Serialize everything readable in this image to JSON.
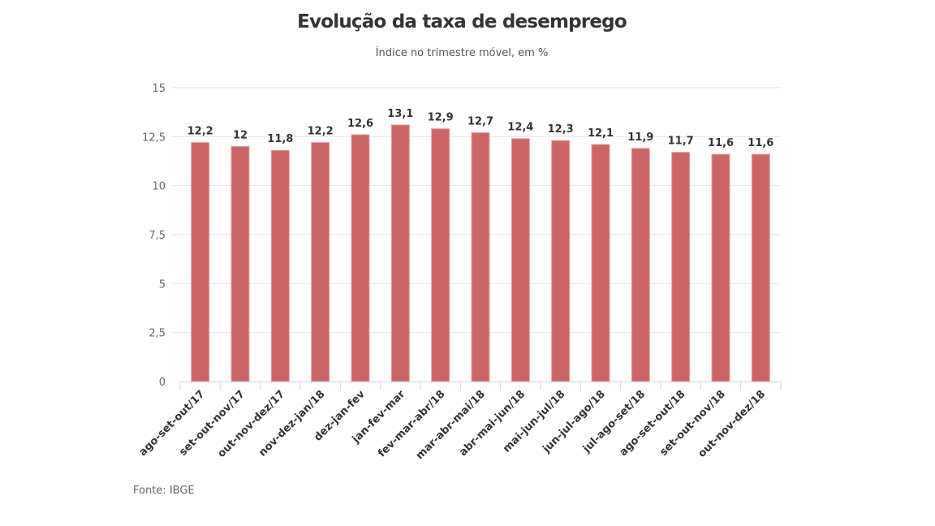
{
  "chart_data": {
    "type": "bar",
    "title": "Evolução da taxa de desemprego",
    "subtitle": "Índice no trimestre móvel, em %",
    "source": "Fonte: IBGE",
    "xlabel": "",
    "ylabel": "",
    "ylim": [
      0,
      15
    ],
    "yticks": [
      0,
      2.5,
      5,
      7.5,
      10,
      12.5,
      15
    ],
    "ytick_labels": [
      "0",
      "2,5",
      "5",
      "7,5",
      "10",
      "12,5",
      "15"
    ],
    "grid": true,
    "bar_color": "#cc6666",
    "categories": [
      "ago-set-out/17",
      "set-out-nov/17",
      "out-nov-dez/17",
      "nov-dez-jan/18",
      "dez-jan-fev",
      "jan-fev-mar",
      "fev-mar-abr/18",
      "mar-abr-mai/18",
      "abr-mai-jun/18",
      "mai-jun-jul/18",
      "jun-jul-ago/18",
      "jul-ago-set/18",
      "ago-set-out/18",
      "set-out-nov/18",
      "out-nov-dez/18"
    ],
    "values": [
      12.2,
      12,
      11.8,
      12.2,
      12.6,
      13.1,
      12.9,
      12.7,
      12.4,
      12.3,
      12.1,
      11.9,
      11.7,
      11.6,
      11.6
    ],
    "value_labels": [
      "12,2",
      "12",
      "11,8",
      "12,2",
      "12,6",
      "13,1",
      "12,9",
      "12,7",
      "12,4",
      "12,3",
      "12,1",
      "11,9",
      "11,7",
      "11,6",
      "11,6"
    ]
  }
}
